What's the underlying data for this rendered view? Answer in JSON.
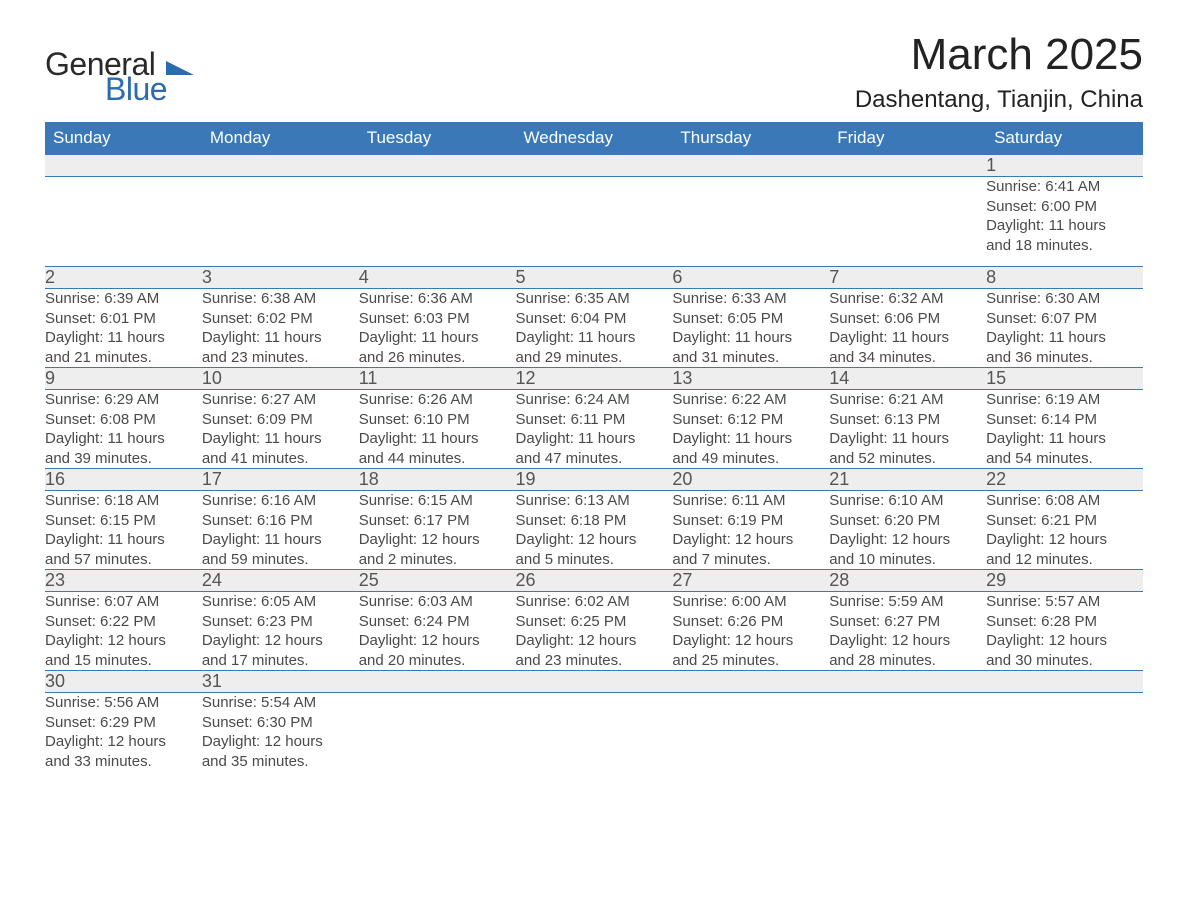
{
  "brand": {
    "line1": "General",
    "line2": "Blue"
  },
  "title": "March 2025",
  "location": "Dashentang, Tianjin, China",
  "colors": {
    "header_bg": "#3a78b8",
    "header_text": "#ffffff",
    "daynum_bg": "#eeeeee",
    "body_text": "#4a4a4a",
    "rule": "#3a78b8",
    "logo_accent": "#2b6bb0"
  },
  "day_headers": [
    "Sunday",
    "Monday",
    "Tuesday",
    "Wednesday",
    "Thursday",
    "Friday",
    "Saturday"
  ],
  "weeks": [
    [
      null,
      null,
      null,
      null,
      null,
      null,
      {
        "n": "1",
        "sr": "Sunrise: 6:41 AM",
        "ss": "Sunset: 6:00 PM",
        "d1": "Daylight: 11 hours",
        "d2": "and 18 minutes."
      }
    ],
    [
      {
        "n": "2",
        "sr": "Sunrise: 6:39 AM",
        "ss": "Sunset: 6:01 PM",
        "d1": "Daylight: 11 hours",
        "d2": "and 21 minutes."
      },
      {
        "n": "3",
        "sr": "Sunrise: 6:38 AM",
        "ss": "Sunset: 6:02 PM",
        "d1": "Daylight: 11 hours",
        "d2": "and 23 minutes."
      },
      {
        "n": "4",
        "sr": "Sunrise: 6:36 AM",
        "ss": "Sunset: 6:03 PM",
        "d1": "Daylight: 11 hours",
        "d2": "and 26 minutes."
      },
      {
        "n": "5",
        "sr": "Sunrise: 6:35 AM",
        "ss": "Sunset: 6:04 PM",
        "d1": "Daylight: 11 hours",
        "d2": "and 29 minutes."
      },
      {
        "n": "6",
        "sr": "Sunrise: 6:33 AM",
        "ss": "Sunset: 6:05 PM",
        "d1": "Daylight: 11 hours",
        "d2": "and 31 minutes."
      },
      {
        "n": "7",
        "sr": "Sunrise: 6:32 AM",
        "ss": "Sunset: 6:06 PM",
        "d1": "Daylight: 11 hours",
        "d2": "and 34 minutes."
      },
      {
        "n": "8",
        "sr": "Sunrise: 6:30 AM",
        "ss": "Sunset: 6:07 PM",
        "d1": "Daylight: 11 hours",
        "d2": "and 36 minutes."
      }
    ],
    [
      {
        "n": "9",
        "sr": "Sunrise: 6:29 AM",
        "ss": "Sunset: 6:08 PM",
        "d1": "Daylight: 11 hours",
        "d2": "and 39 minutes."
      },
      {
        "n": "10",
        "sr": "Sunrise: 6:27 AM",
        "ss": "Sunset: 6:09 PM",
        "d1": "Daylight: 11 hours",
        "d2": "and 41 minutes."
      },
      {
        "n": "11",
        "sr": "Sunrise: 6:26 AM",
        "ss": "Sunset: 6:10 PM",
        "d1": "Daylight: 11 hours",
        "d2": "and 44 minutes."
      },
      {
        "n": "12",
        "sr": "Sunrise: 6:24 AM",
        "ss": "Sunset: 6:11 PM",
        "d1": "Daylight: 11 hours",
        "d2": "and 47 minutes."
      },
      {
        "n": "13",
        "sr": "Sunrise: 6:22 AM",
        "ss": "Sunset: 6:12 PM",
        "d1": "Daylight: 11 hours",
        "d2": "and 49 minutes."
      },
      {
        "n": "14",
        "sr": "Sunrise: 6:21 AM",
        "ss": "Sunset: 6:13 PM",
        "d1": "Daylight: 11 hours",
        "d2": "and 52 minutes."
      },
      {
        "n": "15",
        "sr": "Sunrise: 6:19 AM",
        "ss": "Sunset: 6:14 PM",
        "d1": "Daylight: 11 hours",
        "d2": "and 54 minutes."
      }
    ],
    [
      {
        "n": "16",
        "sr": "Sunrise: 6:18 AM",
        "ss": "Sunset: 6:15 PM",
        "d1": "Daylight: 11 hours",
        "d2": "and 57 minutes."
      },
      {
        "n": "17",
        "sr": "Sunrise: 6:16 AM",
        "ss": "Sunset: 6:16 PM",
        "d1": "Daylight: 11 hours",
        "d2": "and 59 minutes."
      },
      {
        "n": "18",
        "sr": "Sunrise: 6:15 AM",
        "ss": "Sunset: 6:17 PM",
        "d1": "Daylight: 12 hours",
        "d2": "and 2 minutes."
      },
      {
        "n": "19",
        "sr": "Sunrise: 6:13 AM",
        "ss": "Sunset: 6:18 PM",
        "d1": "Daylight: 12 hours",
        "d2": "and 5 minutes."
      },
      {
        "n": "20",
        "sr": "Sunrise: 6:11 AM",
        "ss": "Sunset: 6:19 PM",
        "d1": "Daylight: 12 hours",
        "d2": "and 7 minutes."
      },
      {
        "n": "21",
        "sr": "Sunrise: 6:10 AM",
        "ss": "Sunset: 6:20 PM",
        "d1": "Daylight: 12 hours",
        "d2": "and 10 minutes."
      },
      {
        "n": "22",
        "sr": "Sunrise: 6:08 AM",
        "ss": "Sunset: 6:21 PM",
        "d1": "Daylight: 12 hours",
        "d2": "and 12 minutes."
      }
    ],
    [
      {
        "n": "23",
        "sr": "Sunrise: 6:07 AM",
        "ss": "Sunset: 6:22 PM",
        "d1": "Daylight: 12 hours",
        "d2": "and 15 minutes."
      },
      {
        "n": "24",
        "sr": "Sunrise: 6:05 AM",
        "ss": "Sunset: 6:23 PM",
        "d1": "Daylight: 12 hours",
        "d2": "and 17 minutes."
      },
      {
        "n": "25",
        "sr": "Sunrise: 6:03 AM",
        "ss": "Sunset: 6:24 PM",
        "d1": "Daylight: 12 hours",
        "d2": "and 20 minutes."
      },
      {
        "n": "26",
        "sr": "Sunrise: 6:02 AM",
        "ss": "Sunset: 6:25 PM",
        "d1": "Daylight: 12 hours",
        "d2": "and 23 minutes."
      },
      {
        "n": "27",
        "sr": "Sunrise: 6:00 AM",
        "ss": "Sunset: 6:26 PM",
        "d1": "Daylight: 12 hours",
        "d2": "and 25 minutes."
      },
      {
        "n": "28",
        "sr": "Sunrise: 5:59 AM",
        "ss": "Sunset: 6:27 PM",
        "d1": "Daylight: 12 hours",
        "d2": "and 28 minutes."
      },
      {
        "n": "29",
        "sr": "Sunrise: 5:57 AM",
        "ss": "Sunset: 6:28 PM",
        "d1": "Daylight: 12 hours",
        "d2": "and 30 minutes."
      }
    ],
    [
      {
        "n": "30",
        "sr": "Sunrise: 5:56 AM",
        "ss": "Sunset: 6:29 PM",
        "d1": "Daylight: 12 hours",
        "d2": "and 33 minutes."
      },
      {
        "n": "31",
        "sr": "Sunrise: 5:54 AM",
        "ss": "Sunset: 6:30 PM",
        "d1": "Daylight: 12 hours",
        "d2": "and 35 minutes."
      },
      null,
      null,
      null,
      null,
      null
    ]
  ]
}
